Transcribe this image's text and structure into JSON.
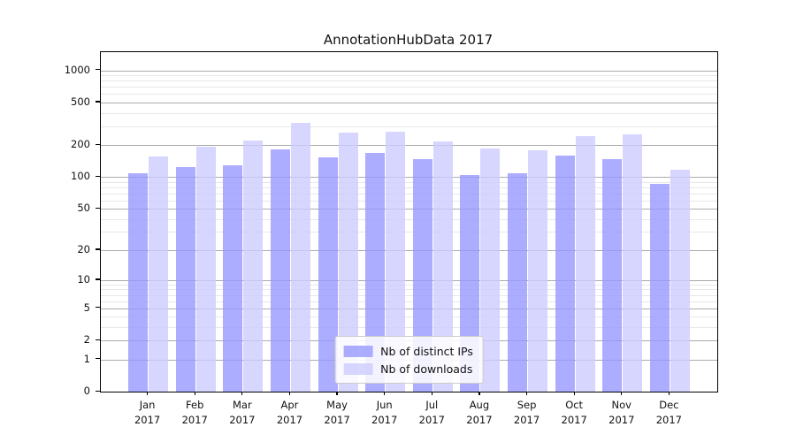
{
  "title": "AnnotationHubData 2017",
  "chart_data": {
    "type": "bar",
    "title": "AnnotationHubData 2017",
    "categories": [
      "Jan 2017",
      "Feb 2017",
      "Mar 2017",
      "Apr 2017",
      "May 2017",
      "Jun 2017",
      "Jul 2017",
      "Aug 2017",
      "Sep 2017",
      "Oct 2017",
      "Nov 2017",
      "Dec 2017"
    ],
    "x_tick_line1": [
      "Jan",
      "Feb",
      "Mar",
      "Apr",
      "May",
      "Jun",
      "Jul",
      "Aug",
      "Sep",
      "Oct",
      "Nov",
      "Dec"
    ],
    "x_tick_line2": "2017",
    "series": [
      {
        "name": "Nb of distinct IPs",
        "color": "#9999ff",
        "values": [
          108,
          123,
          129,
          183,
          152,
          167,
          147,
          104,
          109,
          160,
          147,
          86
        ]
      },
      {
        "name": "Nb of downloads",
        "color": "#ccccff",
        "values": [
          157,
          193,
          219,
          320,
          260,
          268,
          215,
          185,
          178,
          244,
          251,
          117
        ]
      }
    ],
    "y_scale": "log10(1+x)",
    "y_log_max": 3.17,
    "ylim": [
      0,
      1470
    ],
    "y_ticks": [
      0,
      1,
      2,
      5,
      10,
      20,
      50,
      100,
      200,
      500,
      1000
    ],
    "y_minor_ticks": [
      3,
      4,
      6,
      7,
      8,
      9,
      30,
      40,
      60,
      70,
      80,
      90,
      300,
      400,
      600,
      700,
      800,
      900
    ],
    "grid": {
      "major_color": "#ababab",
      "minor_color": "#e8e8e8",
      "on": "horizontal"
    },
    "legend_position": "lower center",
    "bar_opacity": 0.8
  },
  "legend": {
    "items": [
      {
        "label": "Nb of distinct IPs"
      },
      {
        "label": "Nb of downloads"
      }
    ]
  }
}
